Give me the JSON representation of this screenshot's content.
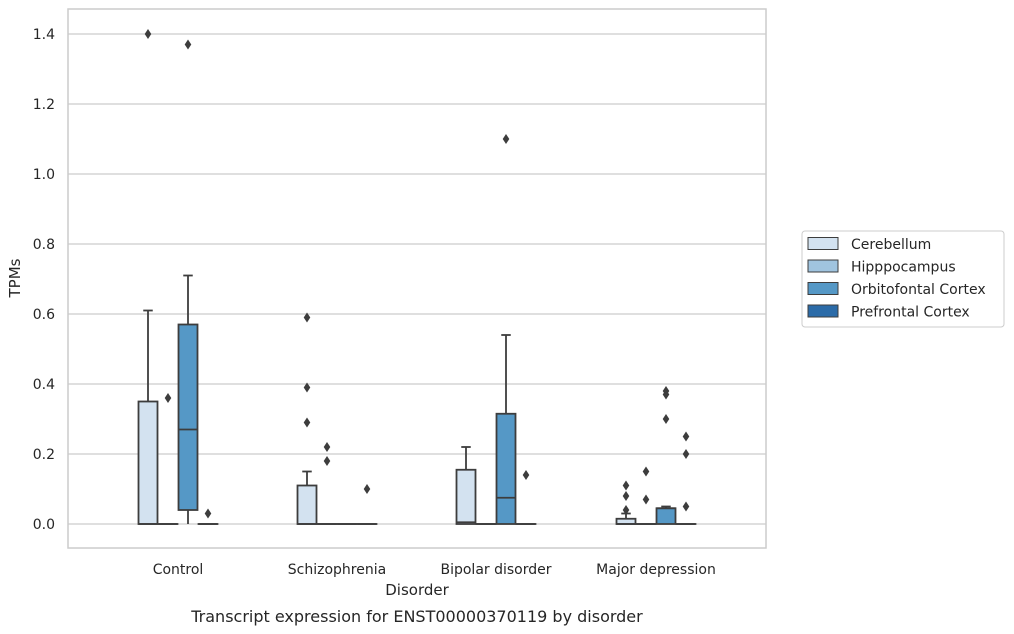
{
  "chart_data": {
    "type": "box",
    "caption": "Transcript expression for ENST00000370119 by disorder",
    "xlabel": "Disorder",
    "ylabel": "TPMs",
    "ylim": [
      -0.07,
      1.47
    ],
    "yticks": [
      0.0,
      0.2,
      0.4,
      0.6,
      0.8,
      1.0,
      1.2,
      1.4
    ],
    "ytick_labels": [
      "0.0",
      "0.2",
      "0.4",
      "0.6",
      "0.8",
      "1.0",
      "1.2",
      "1.4"
    ],
    "grid": "horizontal",
    "legend_position": "right",
    "categories": [
      "Control",
      "Schizophrenia",
      "Bipolar disorder",
      "Major depression"
    ],
    "series": [
      {
        "name": "Cerebellum",
        "color": "#d3e2f0",
        "boxes": [
          {
            "q1": 0.0,
            "median": 0.0,
            "q3": 0.35,
            "whisker_low": 0.0,
            "whisker_high": 0.61,
            "outliers": [
              1.4
            ]
          },
          {
            "q1": 0.0,
            "median": 0.0,
            "q3": 0.11,
            "whisker_low": 0.0,
            "whisker_high": 0.15,
            "outliers": [
              0.59,
              0.39,
              0.29
            ]
          },
          {
            "q1": 0.0,
            "median": 0.005,
            "q3": 0.155,
            "whisker_low": 0.0,
            "whisker_high": 0.22,
            "outliers": []
          },
          {
            "q1": 0.0,
            "median": 0.0,
            "q3": 0.015,
            "whisker_low": 0.0,
            "whisker_high": 0.03,
            "outliers": [
              0.11,
              0.08,
              0.04
            ]
          }
        ]
      },
      {
        "name": "Hipppocampus",
        "color": "#a0c4df",
        "boxes": [
          {
            "q1": 0.0,
            "median": 0.0,
            "q3": 0.0,
            "whisker_low": 0.0,
            "whisker_high": 0.0,
            "outliers": [
              0.36
            ]
          },
          {
            "q1": 0.0,
            "median": 0.0,
            "q3": 0.0,
            "whisker_low": 0.0,
            "whisker_high": 0.0,
            "outliers": [
              0.22,
              0.18
            ]
          },
          {
            "q1": 0.0,
            "median": 0.0,
            "q3": 0.0,
            "whisker_low": 0.0,
            "whisker_high": 0.0,
            "outliers": []
          },
          {
            "q1": 0.0,
            "median": 0.0,
            "q3": 0.0,
            "whisker_low": 0.0,
            "whisker_high": 0.0,
            "outliers": [
              0.15,
              0.07
            ]
          }
        ]
      },
      {
        "name": "Orbitofontal Cortex",
        "color": "#5598c6",
        "boxes": [
          {
            "q1": 0.04,
            "median": 0.27,
            "q3": 0.57,
            "whisker_low": 0.0,
            "whisker_high": 0.71,
            "outliers": [
              1.37
            ]
          },
          {
            "q1": 0.0,
            "median": 0.0,
            "q3": 0.0,
            "whisker_low": 0.0,
            "whisker_high": 0.0,
            "outliers": []
          },
          {
            "q1": 0.0,
            "median": 0.075,
            "q3": 0.315,
            "whisker_low": 0.0,
            "whisker_high": 0.54,
            "outliers": [
              1.1
            ]
          },
          {
            "q1": 0.0,
            "median": 0.045,
            "q3": 0.045,
            "whisker_low": 0.0,
            "whisker_high": 0.05,
            "outliers": [
              0.38,
              0.37,
              0.3
            ]
          }
        ]
      },
      {
        "name": "Prefrontal Cortex",
        "color": "#2b6ba8",
        "boxes": [
          {
            "q1": 0.0,
            "median": 0.0,
            "q3": 0.0,
            "whisker_low": 0.0,
            "whisker_high": 0.0,
            "outliers": [
              0.03
            ]
          },
          {
            "q1": 0.0,
            "median": 0.0,
            "q3": 0.0,
            "whisker_low": 0.0,
            "whisker_high": 0.0,
            "outliers": [
              0.1
            ]
          },
          {
            "q1": 0.0,
            "median": 0.0,
            "q3": 0.0,
            "whisker_low": 0.0,
            "whisker_high": 0.0,
            "outliers": [
              0.14
            ]
          },
          {
            "q1": 0.0,
            "median": 0.0,
            "q3": 0.0,
            "whisker_low": 0.0,
            "whisker_high": 0.0,
            "outliers": [
              0.25,
              0.2,
              0.05
            ]
          }
        ]
      }
    ]
  }
}
